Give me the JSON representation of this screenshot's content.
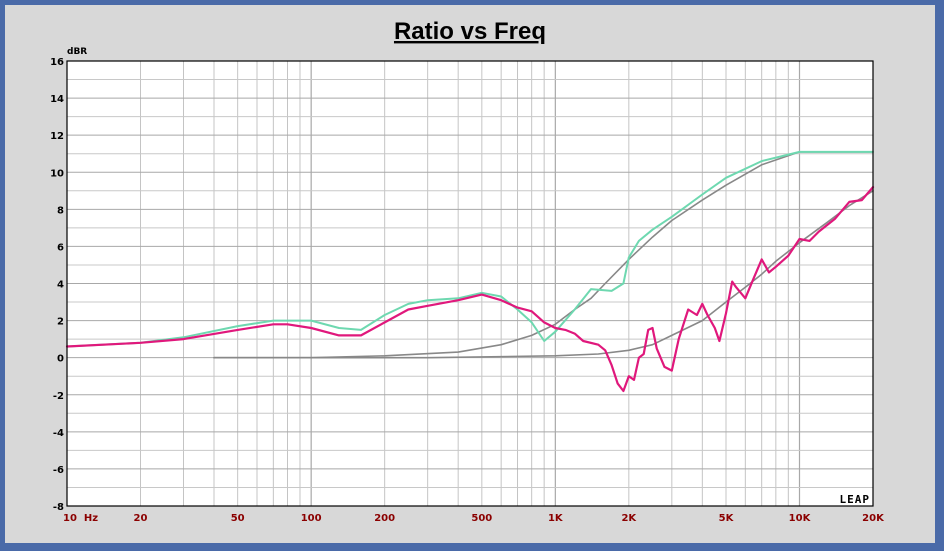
{
  "chart_data": {
    "type": "line",
    "title": "Ratio vs Freq",
    "ylabel": "dBR",
    "xscale": "log",
    "xlim": [
      10,
      20000
    ],
    "ylim": [
      -8,
      16
    ],
    "grid": true,
    "yticks": [
      "16",
      "14",
      "12",
      "10",
      "8",
      "6",
      "4",
      "2",
      "0",
      "-2",
      "-4",
      "-6",
      "-8"
    ],
    "ytick_values": [
      16,
      14,
      12,
      10,
      8,
      6,
      4,
      2,
      0,
      -2,
      -4,
      -6,
      -8
    ],
    "xticks": [
      "10  Hz",
      "20",
      "50",
      "100",
      "200",
      "500",
      "1K",
      "2K",
      "5K",
      "10K",
      "20K"
    ],
    "xtick_values": [
      10,
      20,
      50,
      100,
      200,
      500,
      1000,
      2000,
      5000,
      10000,
      20000
    ],
    "logo": "LEAP",
    "series": [
      {
        "color": "#6ed8b0",
        "x": [
          10,
          20,
          30,
          50,
          70,
          100,
          130,
          160,
          200,
          250,
          300,
          400,
          500,
          600,
          700,
          800,
          900,
          1000,
          1200,
          1400,
          1700,
          1900,
          2000,
          2200,
          2500,
          3000,
          4000,
          5000,
          7000,
          10000,
          15000,
          20000
        ],
        "y": [
          0.6,
          0.8,
          1.1,
          1.7,
          2.0,
          2.0,
          1.6,
          1.5,
          2.3,
          2.9,
          3.1,
          3.2,
          3.5,
          3.3,
          2.6,
          1.9,
          0.9,
          1.4,
          2.6,
          3.7,
          3.6,
          4.0,
          5.4,
          6.3,
          6.9,
          7.6,
          8.8,
          9.7,
          10.6,
          11.1,
          11.1,
          11.1
        ]
      },
      {
        "color": "#e0187c",
        "x": [
          10,
          20,
          30,
          50,
          70,
          80,
          100,
          130,
          160,
          200,
          250,
          300,
          400,
          500,
          600,
          700,
          800,
          900,
          1000,
          1100,
          1200,
          1300,
          1500,
          1600,
          1700,
          1800,
          1900,
          2000,
          2100,
          2200,
          2300,
          2400,
          2500,
          2600,
          2800,
          3000,
          3200,
          3500,
          3800,
          4000,
          4200,
          4500,
          4700,
          5000,
          5300,
          5500,
          6000,
          6500,
          7000,
          7500,
          8000,
          9000,
          10000,
          11000,
          12000,
          14000,
          16000,
          18000,
          20000
        ],
        "y": [
          0.6,
          0.8,
          1.0,
          1.5,
          1.8,
          1.8,
          1.6,
          1.2,
          1.2,
          1.9,
          2.6,
          2.8,
          3.1,
          3.4,
          3.1,
          2.7,
          2.5,
          1.9,
          1.6,
          1.5,
          1.3,
          0.9,
          0.7,
          0.4,
          -0.4,
          -1.4,
          -1.8,
          -1.0,
          -1.2,
          0.0,
          0.2,
          1.5,
          1.6,
          0.5,
          -0.5,
          -0.7,
          1.0,
          2.6,
          2.3,
          2.9,
          2.3,
          1.6,
          0.9,
          2.4,
          4.1,
          3.8,
          3.2,
          4.3,
          5.3,
          4.6,
          4.9,
          5.5,
          6.4,
          6.3,
          6.8,
          7.5,
          8.4,
          8.5,
          9.2
        ]
      },
      {
        "color": "#888888",
        "x": [
          40,
          100,
          200,
          400,
          600,
          800,
          1000,
          1200,
          1400,
          1600,
          2000,
          2500,
          3000,
          4000,
          5000,
          7000,
          10000,
          20000
        ],
        "y": [
          0.0,
          0.0,
          0.1,
          0.3,
          0.7,
          1.2,
          1.8,
          2.6,
          3.2,
          4.0,
          5.3,
          6.5,
          7.4,
          8.5,
          9.3,
          10.4,
          11.1,
          11.1
        ]
      },
      {
        "color": "#888888",
        "x": [
          40,
          100,
          300,
          1000,
          1500,
          2000,
          2500,
          3000,
          4000,
          5000,
          6000,
          7000,
          8000,
          10000,
          13000,
          16000,
          20000
        ],
        "y": [
          0.0,
          0.0,
          0.0,
          0.1,
          0.2,
          0.4,
          0.7,
          1.2,
          2.0,
          3.0,
          3.8,
          4.5,
          5.2,
          6.2,
          7.3,
          8.2,
          9.0
        ]
      }
    ]
  }
}
